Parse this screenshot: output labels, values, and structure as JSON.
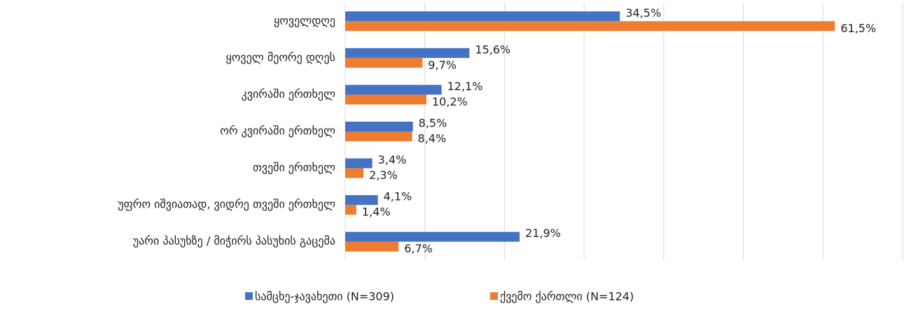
{
  "chart_data": {
    "type": "hbar",
    "categories": [
      "ყოველდღე",
      "ყოველ მეორე დღეს",
      "კვირაში ერთხელ",
      "ორ კვირაში ერთხელ",
      "თვეში ერთხელ",
      "უფრო იშვიათად, ვიდრე თვეში ერთხელ",
      "უარი პასუხზე / მიჭირს პასუხის გაცემა"
    ],
    "series": [
      {
        "name": "სამცხე-ჯავახეთი (N=309)",
        "color": "#4472c4",
        "values": [
          34.5,
          15.6,
          12.1,
          8.5,
          3.4,
          4.1,
          21.9
        ],
        "value_labels": [
          "34,5%",
          "15,6%",
          "12,1%",
          "8,5%",
          "3,4%",
          "4,1%",
          "21,9%"
        ]
      },
      {
        "name": "ქვემო ქართლი (N=124)",
        "color": "#ed7d31",
        "values": [
          61.5,
          9.7,
          10.2,
          8.4,
          2.3,
          1.4,
          6.7
        ],
        "value_labels": [
          "61,5%",
          "9,7%",
          "10,2%",
          "8,4%",
          "2,3%",
          "1,4%",
          "6,7%"
        ]
      }
    ],
    "xlim": [
      0,
      70
    ],
    "xticks": [
      0,
      10,
      20,
      30,
      40,
      50,
      60,
      70
    ],
    "grid": true,
    "legend": "bottom"
  }
}
